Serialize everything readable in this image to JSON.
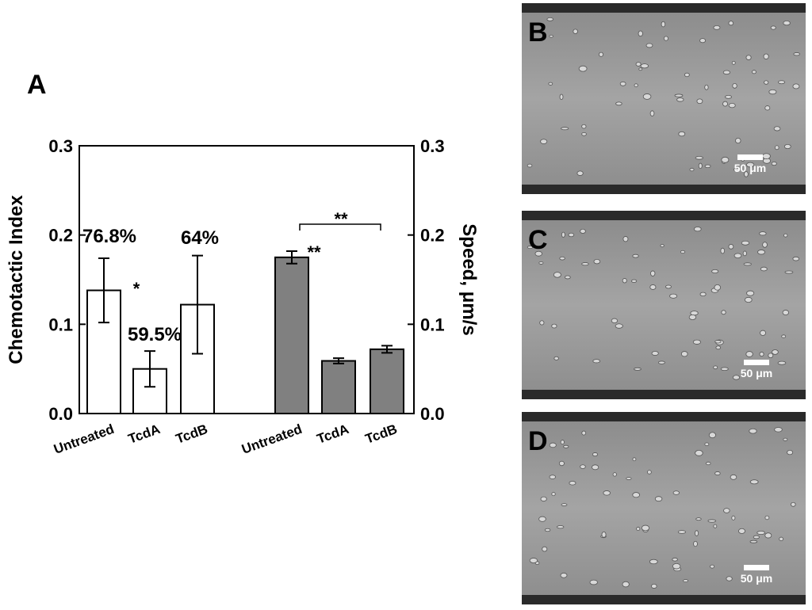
{
  "chart_data": {
    "type": "bar",
    "panel_label": "A",
    "ylabel": "Chemotactic Index",
    "y2label": "Speed, μm/s",
    "categories": [
      "Untreated",
      "TcdA",
      "TcdB"
    ],
    "series": [
      {
        "color": "#ffffff",
        "axis": "y",
        "values": [
          0.138,
          0.05,
          0.122
        ],
        "errors": [
          0.036,
          0.02,
          0.055
        ]
      },
      {
        "color": "#808080",
        "axis": "y2",
        "values": [
          0.175,
          0.059,
          0.072
        ],
        "errors": [
          0.007,
          0.003,
          0.004
        ]
      }
    ],
    "ylim": [
      0,
      0.3
    ],
    "yticks": [
      {
        "value": 0,
        "label": "0.0"
      },
      0.1,
      0.2,
      0.3
    ],
    "y2lim": [
      0,
      0.3
    ],
    "y2ticks": [
      {
        "value": 0,
        "label": "0.0"
      },
      0.1,
      0.2,
      0.3
    ],
    "annotations": [
      "76.8%",
      "*",
      "59.5%",
      "64%",
      "**",
      "**"
    ]
  },
  "images": [
    {
      "label": "B",
      "scale_bar": "50 μm"
    },
    {
      "label": "C",
      "scale_bar": "50 μm"
    },
    {
      "label": "D",
      "scale_bar": "50 μm"
    }
  ]
}
